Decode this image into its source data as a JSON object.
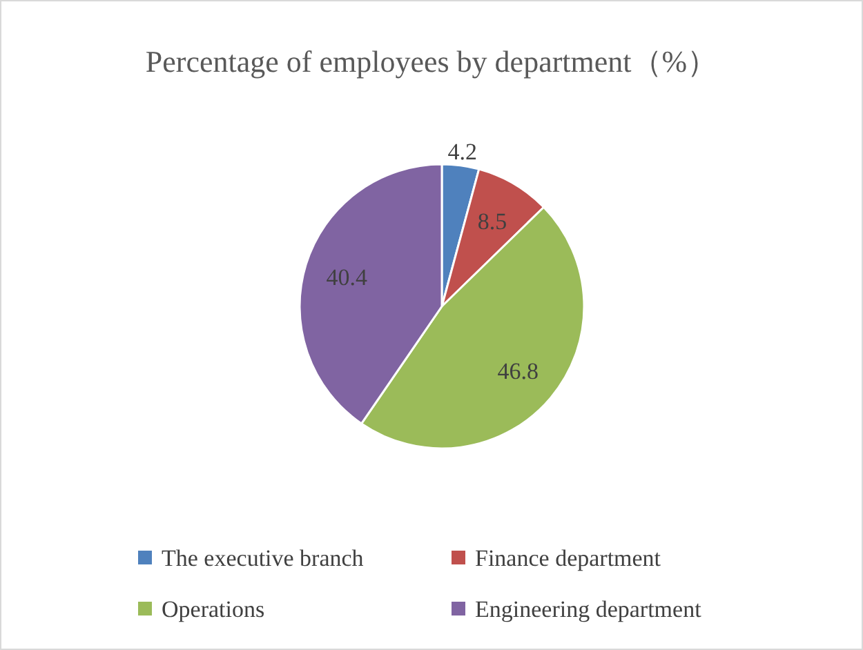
{
  "chart_data": {
    "type": "pie",
    "title": "Percentage of employees by department（%）",
    "categories": [
      "The executive branch",
      "Finance department",
      "Operations",
      "Engineering department"
    ],
    "values": [
      4.2,
      8.5,
      46.8,
      40.4
    ],
    "colors": [
      "#4f81bd",
      "#c0504d",
      "#9bbb59",
      "#8064a2"
    ],
    "data_labels": true,
    "legend": "bottom"
  }
}
